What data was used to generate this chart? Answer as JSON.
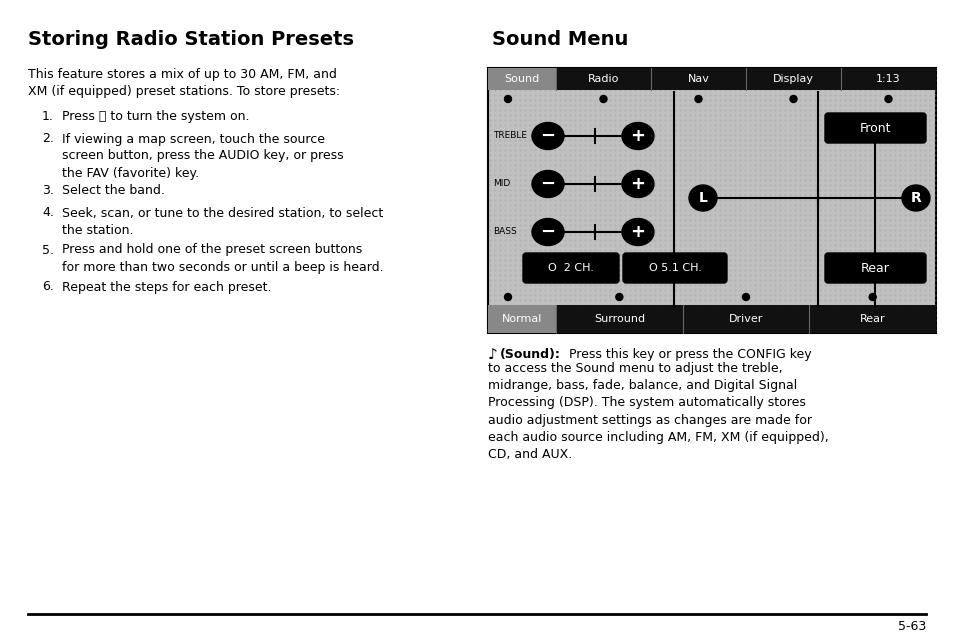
{
  "bg_color": "#ffffff",
  "left_title": "Storing Radio Station Presets",
  "body_line1": "This feature stores a mix of up to 30 AM, FM, and",
  "body_line2": "XM (if equipped) preset stations. To store presets:",
  "step1_num": "1.",
  "step1_text": "Press ⒨ to turn the system on.",
  "step2_num": "2.",
  "step2_text": "If viewing a map screen, touch the source\nscreen button, press the AUDIO key, or press\nthe FAV (favorite) key.",
  "step3_num": "3.",
  "step3_text": "Select the band.",
  "step4_num": "4.",
  "step4_text": "Seek, scan, or tune to the desired station, to select\nthe station.",
  "step5_num": "5.",
  "step5_text": "Press and hold one of the preset screen buttons\nfor more than two seconds or until a beep is heard.",
  "step6_num": "6.",
  "step6_text": "Repeat the steps for each preset.",
  "right_title": "Sound Menu",
  "sound_icon": "♪",
  "sound_bold": "(Sound):",
  "sound_rest": " Press this key or press the CONFIG key\nto access the Sound menu to adjust the treble,\nmidrange, bass, fade, balance, and Digital Signal\nProcessing (DSP). The system automatically stores\naudio adjustment settings as changes are made for\neach audio source including AM, FM, XM (if equipped),\nCD, and AUX.",
  "page_number": "5-63",
  "nav_sound": "Sound",
  "nav_tabs": [
    "Radio",
    "Nav",
    "Display",
    "1:13"
  ],
  "eq_labels": [
    "TREBLE",
    "MID",
    "BASS"
  ],
  "bot_normal": "Normal",
  "bot_tabs": [
    "Surround",
    "Driver",
    "Rear"
  ],
  "ch1_label": "O  2 CH.",
  "ch2_label": "O 5.1 CH.",
  "front_label": "Front",
  "rear_label": "Rear",
  "L_label": "L",
  "R_label": "R",
  "black": "#000000",
  "white": "#ffffff",
  "panel_bg": "#c0c0c0",
  "sound_tab_bg": "#888888",
  "nav_bar_bg": "#111111"
}
